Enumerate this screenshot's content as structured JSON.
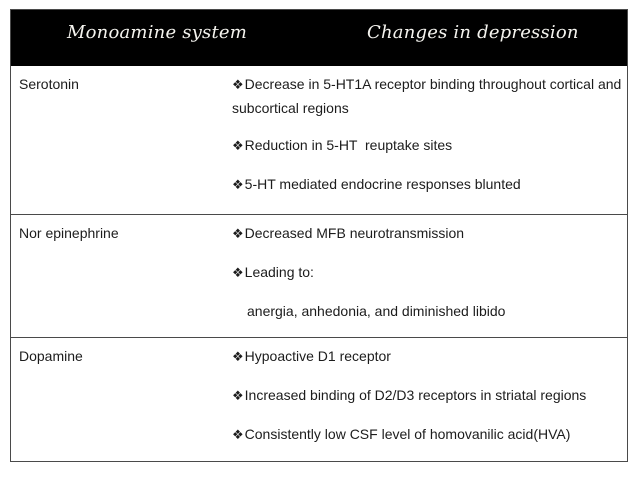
{
  "colors": {
    "header_bg": "#000000",
    "header_text": "#f4f3ee",
    "body_text": "#1c1c1c",
    "table_border": "#4a4a4a",
    "slide_bg": "#ffffff"
  },
  "table": {
    "bullet_glyph": "❖",
    "header": {
      "monoamine_col": "Monoamine system",
      "changes_col": "Changes in depression"
    },
    "rows": [
      {
        "system": "Serotonin",
        "changes": [
          "Decrease in 5-HT1A receptor binding throughout cortical and subcortical regions",
          "Reduction in 5-HT  reuptake sites",
          "5-HT mediated endocrine responses blunted"
        ]
      },
      {
        "system": "Nor epinephrine",
        "changes": [
          "Decreased MFB neurotransmission",
          "Leading to:"
        ],
        "continuation": "anergia, anhedonia, and diminished libido"
      },
      {
        "system": "Dopamine",
        "changes": [
          "Hypoactive D1 receptor",
          "Increased binding of D2/D3 receptors in striatal regions",
          "Consistently low CSF level of homovanilic acid(HVA)"
        ]
      }
    ]
  }
}
